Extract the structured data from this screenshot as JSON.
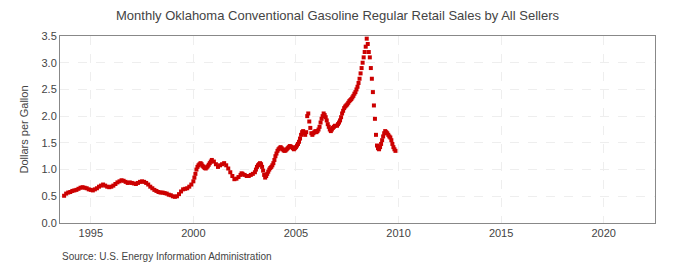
{
  "chart_data": {
    "type": "scatter",
    "title": "Monthly Oklahoma Conventional Gasoline Regular Retail Sales by All Sellers",
    "y_label": "Dollars per Gallon",
    "annotations": [
      "Source: U.S. Energy Information Administration"
    ],
    "color": "#CC0000",
    "marker": "square",
    "grid": true,
    "xlim": [
      1993.5,
      2022.5
    ],
    "xticks": [
      1995,
      2000,
      2005,
      2010,
      2015,
      2020
    ],
    "ylim": [
      0.0,
      3.5
    ],
    "yticks": [
      {
        "value": 0.0,
        "label": "0.0"
      },
      0.5,
      {
        "value": 1.0,
        "label": "1.0"
      },
      1.5,
      {
        "value": 2.0,
        "label": "2.0"
      },
      2.5,
      {
        "value": 3.0,
        "label": "3.0"
      },
      3.5
    ],
    "x": [
      1993.7,
      1993.8,
      1993.9,
      1994.0,
      1994.1,
      1994.2,
      1994.3,
      1994.4,
      1994.5,
      1994.6,
      1994.7,
      1994.8,
      1994.9,
      1995.0,
      1995.1,
      1995.2,
      1995.3,
      1995.4,
      1995.5,
      1995.6,
      1995.7,
      1995.8,
      1995.9,
      1996.0,
      1996.1,
      1996.2,
      1996.3,
      1996.4,
      1996.5,
      1996.6,
      1996.7,
      1996.8,
      1996.9,
      1997.0,
      1997.1,
      1997.2,
      1997.3,
      1997.4,
      1997.5,
      1997.6,
      1997.7,
      1997.8,
      1997.9,
      1998.0,
      1998.1,
      1998.2,
      1998.3,
      1998.4,
      1998.5,
      1998.6,
      1998.7,
      1998.8,
      1998.9,
      1999.0,
      1999.1,
      1999.2,
      1999.3,
      1999.4,
      1999.5,
      1999.6,
      1999.7,
      1999.8,
      1999.9,
      2000.0,
      2000.05,
      2000.1,
      2000.15,
      2000.2,
      2000.25,
      2000.3,
      2000.35,
      2000.4,
      2000.45,
      2000.5,
      2000.55,
      2000.6,
      2000.65,
      2000.7,
      2000.75,
      2000.8,
      2000.85,
      2000.9,
      2001.0,
      2001.1,
      2001.2,
      2001.3,
      2001.4,
      2001.5,
      2001.6,
      2001.7,
      2001.8,
      2001.9,
      2002.0,
      2002.1,
      2002.2,
      2002.3,
      2002.35,
      2002.4,
      2002.5,
      2002.6,
      2002.7,
      2002.8,
      2002.9,
      2003.0,
      2003.05,
      2003.1,
      2003.15,
      2003.2,
      2003.25,
      2003.3,
      2003.35,
      2003.4,
      2003.45,
      2003.5,
      2003.55,
      2003.6,
      2003.65,
      2003.7,
      2003.75,
      2003.8,
      2003.85,
      2003.9,
      2003.95,
      2004.0,
      2004.05,
      2004.1,
      2004.15,
      2004.2,
      2004.25,
      2004.3,
      2004.35,
      2004.4,
      2004.45,
      2004.5,
      2004.55,
      2004.6,
      2004.65,
      2004.7,
      2004.75,
      2004.8,
      2004.85,
      2004.9,
      2004.95,
      2005.0,
      2005.05,
      2005.1,
      2005.15,
      2005.2,
      2005.25,
      2005.3,
      2005.35,
      2005.4,
      2005.45,
      2005.5,
      2005.55,
      2005.6,
      2005.65,
      2005.7,
      2005.75,
      2005.8,
      2005.85,
      2005.9,
      2005.95,
      2006.0,
      2006.05,
      2006.1,
      2006.15,
      2006.2,
      2006.25,
      2006.3,
      2006.35,
      2006.4,
      2006.45,
      2006.5,
      2006.55,
      2006.6,
      2006.65,
      2006.7,
      2006.75,
      2006.8,
      2006.85,
      2006.9,
      2007.0,
      2007.05,
      2007.1,
      2007.15,
      2007.2,
      2007.25,
      2007.3,
      2007.35,
      2007.4,
      2007.45,
      2007.5,
      2007.55,
      2007.6,
      2007.65,
      2007.7,
      2007.75,
      2007.8,
      2007.85,
      2007.9,
      2007.95,
      2008.0,
      2008.05,
      2008.1,
      2008.15,
      2008.2,
      2008.25,
      2008.3,
      2008.35,
      2008.4,
      2008.45,
      2008.5,
      2008.55,
      2008.6,
      2008.65,
      2008.7,
      2008.75,
      2008.8,
      2008.85,
      2008.9,
      2008.95,
      2009.0,
      2009.05,
      2009.1,
      2009.15,
      2009.2,
      2009.25,
      2009.3,
      2009.35,
      2009.4,
      2009.45,
      2009.5,
      2009.55,
      2009.6,
      2009.65,
      2009.7,
      2009.75,
      2009.8,
      2009.85
    ],
    "values": [
      0.51,
      0.55,
      0.57,
      0.58,
      0.6,
      0.61,
      0.62,
      0.64,
      0.66,
      0.67,
      0.66,
      0.65,
      0.63,
      0.62,
      0.61,
      0.63,
      0.65,
      0.68,
      0.7,
      0.72,
      0.7,
      0.68,
      0.67,
      0.68,
      0.7,
      0.73,
      0.76,
      0.78,
      0.8,
      0.79,
      0.77,
      0.75,
      0.76,
      0.75,
      0.74,
      0.73,
      0.75,
      0.77,
      0.78,
      0.77,
      0.75,
      0.72,
      0.68,
      0.65,
      0.62,
      0.6,
      0.58,
      0.57,
      0.57,
      0.56,
      0.55,
      0.53,
      0.52,
      0.5,
      0.49,
      0.5,
      0.54,
      0.59,
      0.63,
      0.64,
      0.65,
      0.68,
      0.72,
      0.78,
      0.85,
      0.92,
      1.0,
      1.05,
      1.08,
      1.1,
      1.12,
      1.1,
      1.07,
      1.05,
      1.03,
      1.02,
      1.04,
      1.06,
      1.09,
      1.12,
      1.15,
      1.18,
      1.15,
      1.1,
      1.05,
      1.08,
      1.1,
      1.12,
      1.08,
      1.02,
      0.95,
      0.88,
      0.82,
      0.83,
      0.86,
      0.9,
      0.93,
      0.92,
      0.9,
      0.88,
      0.88,
      0.9,
      0.92,
      0.95,
      1.0,
      1.05,
      1.08,
      1.1,
      1.12,
      1.1,
      1.05,
      0.98,
      0.9,
      0.85,
      0.88,
      0.92,
      0.96,
      1.0,
      1.03,
      1.05,
      1.08,
      1.12,
      1.18,
      1.25,
      1.3,
      1.35,
      1.38,
      1.4,
      1.42,
      1.4,
      1.38,
      1.36,
      1.35,
      1.36,
      1.38,
      1.4,
      1.42,
      1.44,
      1.43,
      1.42,
      1.4,
      1.38,
      1.4,
      1.42,
      1.45,
      1.48,
      1.52,
      1.58,
      1.65,
      1.7,
      1.72,
      1.68,
      1.65,
      1.7,
      2.0,
      2.05,
      1.9,
      1.78,
      1.68,
      1.65,
      1.68,
      1.7,
      1.72,
      1.7,
      1.72,
      1.75,
      1.8,
      1.88,
      1.95,
      2.0,
      2.05,
      2.02,
      1.98,
      1.92,
      1.85,
      1.8,
      1.75,
      1.72,
      1.75,
      1.78,
      1.8,
      1.82,
      1.82,
      1.85,
      1.88,
      1.92,
      1.98,
      2.05,
      2.1,
      2.15,
      2.18,
      2.2,
      2.22,
      2.25,
      2.28,
      2.3,
      2.32,
      2.35,
      2.38,
      2.42,
      2.45,
      2.5,
      2.55,
      2.62,
      2.7,
      2.8,
      2.9,
      3.0,
      3.1,
      3.2,
      3.3,
      3.45,
      3.35,
      3.2,
      3.1,
      2.9,
      2.7,
      2.45,
      2.2,
      1.95,
      1.65,
      1.45,
      1.4,
      1.38,
      1.42,
      1.48,
      1.55,
      1.62,
      1.68,
      1.72,
      1.7,
      1.68,
      1.65,
      1.62,
      1.6,
      1.55,
      1.48,
      1.42,
      1.38,
      1.35
    ]
  }
}
